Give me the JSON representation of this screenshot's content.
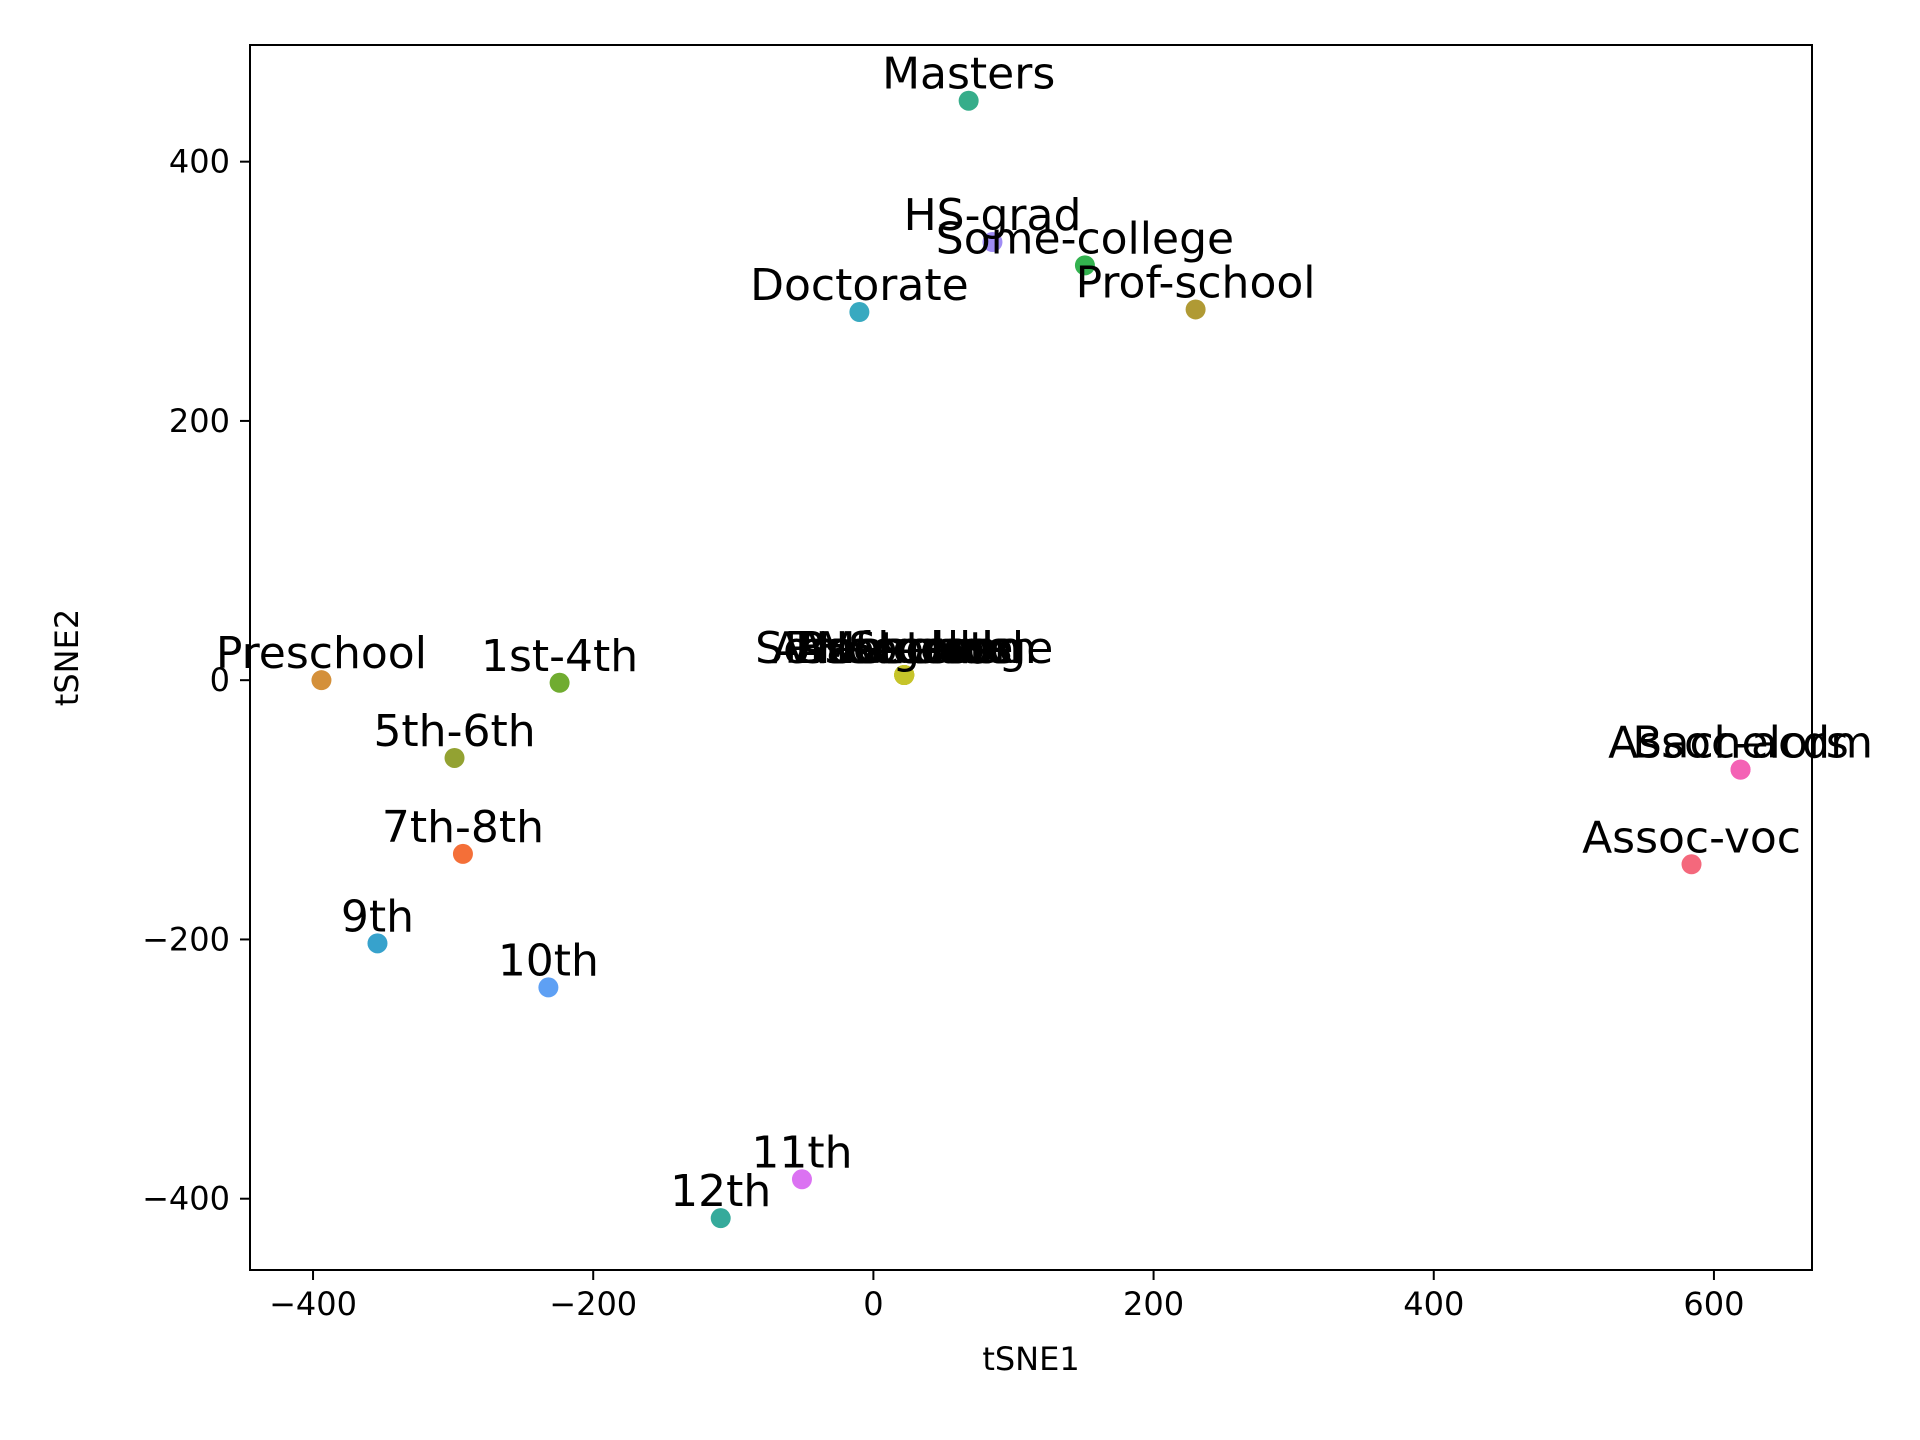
{
  "chart_data": {
    "type": "scatter",
    "title": "",
    "xlabel": "tSNE1",
    "ylabel": "tSNE2",
    "xlim": [
      -445,
      670
    ],
    "ylim": [
      -455,
      490
    ],
    "xticks": [
      -400,
      -200,
      0,
      200,
      400,
      600
    ],
    "yticks": [
      -400,
      -200,
      0,
      200,
      400
    ],
    "grid": false,
    "points": [
      {
        "label": "Masters",
        "x": 68,
        "y": 447,
        "color": "#36ad8a"
      },
      {
        "label": "HS-grad",
        "x": 85,
        "y": 338,
        "color": "#9f8cf4"
      },
      {
        "label": "Some-college",
        "x": 151,
        "y": 320,
        "color": "#33b24f"
      },
      {
        "label": "Doctorate",
        "x": -10,
        "y": 284,
        "color": "#38a9c0"
      },
      {
        "label": "Prof-school",
        "x": 230,
        "y": 286,
        "color": "#b09a34"
      },
      {
        "label": "Preschool",
        "x": -394,
        "y": 0,
        "color": "#d4903a"
      },
      {
        "label": "1st-4th",
        "x": -224,
        "y": -2,
        "color": "#70ac30"
      },
      {
        "label": "5th-6th",
        "x": -299,
        "y": -60,
        "color": "#93a232"
      },
      {
        "label": "7th-8th",
        "x": -293,
        "y": -134,
        "color": "#f46f38"
      },
      {
        "label": "9th",
        "x": -354,
        "y": -203,
        "color": "#37a2cc"
      },
      {
        "label": "10th",
        "x": -232,
        "y": -237,
        "color": "#5ea0f4"
      },
      {
        "label": "11th",
        "x": -51,
        "y": -385,
        "color": "#db72f2"
      },
      {
        "label": "12th",
        "x": -109,
        "y": -415,
        "color": "#35aa9b"
      },
      {
        "label": "Bachelors",
        "x": 619,
        "y": -69,
        "color": "#f462b5"
      },
      {
        "label": "Assoc-acdm",
        "x": 619,
        "y": -69,
        "color": "#f462b5"
      },
      {
        "label": "Assoc-voc",
        "x": 584,
        "y": -142,
        "color": "#f4687c"
      },
      {
        "label": "Some-college",
        "x": 22,
        "y": 4,
        "color": "#c6c42a"
      },
      {
        "label": "Masters",
        "x": 22,
        "y": 4,
        "color": "#c6c42a"
      },
      {
        "label": "HS-grad",
        "x": 22,
        "y": 4,
        "color": "#c6c42a"
      },
      {
        "label": "Bachelors",
        "x": 22,
        "y": 4,
        "color": "#c6c42a"
      },
      {
        "label": "Doctorate",
        "x": 22,
        "y": 4,
        "color": "#c6c42a"
      },
      {
        "label": "Prof-school",
        "x": 22,
        "y": 4,
        "color": "#c6c42a"
      },
      {
        "label": "Assoc-acdm",
        "x": 22,
        "y": 4,
        "color": "#c6c42a"
      },
      {
        "label": "Assoc-voc",
        "x": 22,
        "y": 4,
        "color": "#c6c42a"
      }
    ]
  }
}
